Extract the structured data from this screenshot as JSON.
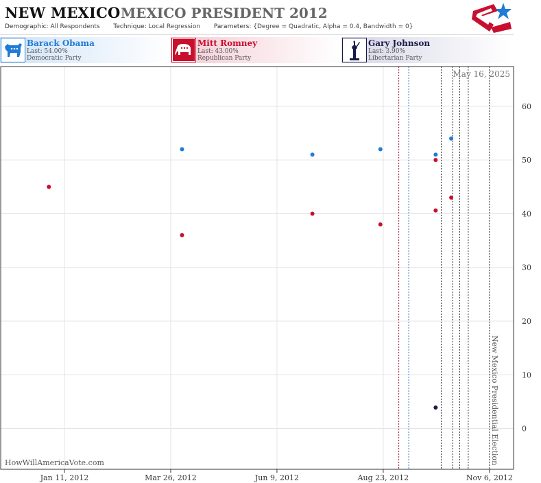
{
  "header": {
    "state": "NEW MEXICO",
    "race": "MEXICO PRESIDENT 2012",
    "demographic_label": "Demographic:",
    "demographic_value": "All Respondents",
    "technique_label": "Technique:",
    "technique_value": "Local Regression",
    "parameters_label": "Parameters:",
    "parameters_value": "{Degree = Quadratic, Alpha = 0.4, Bandwidth = 0}"
  },
  "candidates": [
    {
      "name": "Barack Obama",
      "last": "Last: 54.00%",
      "party": "Democratic Party",
      "icon": "donkey-icon",
      "color": "#1f7bd6"
    },
    {
      "name": "Mitt Romney",
      "last": "Last: 43.00%",
      "party": "Republican Party",
      "icon": "elephant-icon",
      "color": "#c8102e"
    },
    {
      "name": "Gary Johnson",
      "last": "Last: 3.90%",
      "party": "Libertarian Party",
      "icon": "statue-of-liberty-icon",
      "color": "#1a1a4a"
    }
  ],
  "watermark": "HowWillAmericaVote.com",
  "chart_data": {
    "type": "scatter",
    "x_tick_labels": [
      "Jan 11, 2012",
      "Mar 26, 2012",
      "Jun 9, 2012",
      "Aug 23, 2012",
      "Nov 6, 2012"
    ],
    "x_ticks": [
      "2012-01-11",
      "2012-03-26",
      "2012-06-09",
      "2012-08-23",
      "2012-11-06"
    ],
    "xlim": [
      "2011-11-27",
      "2012-11-23"
    ],
    "y_ticks": [
      0,
      10,
      20,
      30,
      40,
      50,
      60
    ],
    "ylim": [
      -7.6,
      67.4
    ],
    "grid": true,
    "date_label": "May 16, 2025",
    "election_label": "New Mexico Presidential Election",
    "series": [
      {
        "name": "Barack Obama",
        "color": "#1f7bd6",
        "points": [
          [
            "2012-04-03",
            52
          ],
          [
            "2012-07-04",
            51
          ],
          [
            "2012-08-21",
            52
          ],
          [
            "2012-09-29",
            51
          ],
          [
            "2012-10-10",
            54
          ]
        ]
      },
      {
        "name": "Mitt Romney",
        "color": "#c8102e",
        "points": [
          [
            "2011-12-31",
            45
          ],
          [
            "2012-04-03",
            36
          ],
          [
            "2012-07-04",
            40
          ],
          [
            "2012-08-21",
            38
          ],
          [
            "2012-09-29",
            40.6
          ],
          [
            "2012-09-29",
            50
          ],
          [
            "2012-10-10",
            43
          ]
        ]
      },
      {
        "name": "Gary Johnson",
        "color": "#1a1a4a",
        "points": [
          [
            "2012-09-29",
            3.9
          ]
        ]
      }
    ],
    "vlines": [
      {
        "date": "2012-09-03",
        "color": "#a0102a",
        "style": "dotted"
      },
      {
        "date": "2012-09-10",
        "color": "#1f7bd6",
        "style": "dotted"
      },
      {
        "date": "2012-10-03",
        "color": "#333333",
        "style": "dotted"
      },
      {
        "date": "2012-10-11",
        "color": "#333333",
        "style": "dotted"
      },
      {
        "date": "2012-10-16",
        "color": "#333333",
        "style": "dotted"
      },
      {
        "date": "2012-10-22",
        "color": "#333333",
        "style": "dotted"
      },
      {
        "date": "2012-11-06",
        "color": "#333333",
        "style": "dotted"
      }
    ]
  }
}
